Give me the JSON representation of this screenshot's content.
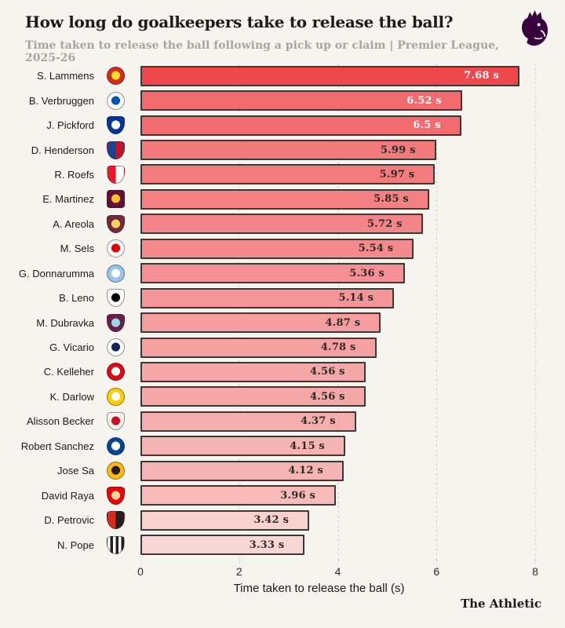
{
  "header": {
    "title": "How long do goalkeepers take to release the ball?",
    "subtitle": "Time taken to release the ball following a pick up or claim | Premier League, 2025-26",
    "logo_icon": "premier-league-lion-logo",
    "logo_color": "#38003c"
  },
  "chart_data": {
    "type": "bar",
    "orientation": "horizontal",
    "title": "How long do goalkeepers take to release the ball?",
    "xlabel": "Time taken to release the ball (s)",
    "ylabel": "",
    "xlim": [
      0,
      8
    ],
    "xticks": [
      0,
      2,
      4,
      6,
      8
    ],
    "grid": "vertical dotted gridlines at 2,4,6,8",
    "legend": "none",
    "value_suffix": " s",
    "bar_border_color": "#3f3734",
    "players": [
      {
        "name": "S. Lammens",
        "club": "Manchester United",
        "value": 7.68,
        "label": "7.68 s",
        "bar_color": "#ef474c",
        "label_color": "#ffffff",
        "crest": {
          "icon": "manchester-united-crest",
          "shape": "circle",
          "style": "ring",
          "colors": [
            "#da291c",
            "#fbe122"
          ]
        }
      },
      {
        "name": "B. Verbruggen",
        "club": "Brighton & Hove Albion",
        "value": 6.52,
        "label": "6.52 s",
        "bar_color": "#f16a6e",
        "label_color": "#ffffff",
        "crest": {
          "icon": "brighton-crest",
          "shape": "circle",
          "style": "ring",
          "colors": [
            "#ffffff",
            "#0057b8"
          ]
        }
      },
      {
        "name": "J. Pickford",
        "club": "Everton",
        "value": 6.5,
        "label": "6.5 s",
        "bar_color": "#f16b6f",
        "label_color": "#ffffff",
        "crest": {
          "icon": "everton-crest",
          "shape": "shield",
          "style": "ring",
          "colors": [
            "#00369c",
            "#ffffff"
          ]
        }
      },
      {
        "name": "D. Henderson",
        "club": "Crystal Palace",
        "value": 5.99,
        "label": "5.99 s",
        "bar_color": "#f27a7d",
        "label_color": "#2e2a28",
        "crest": {
          "icon": "crystal-palace-crest",
          "shape": "shield",
          "style": "split",
          "colors": [
            "#1b458f",
            "#c4122e"
          ]
        }
      },
      {
        "name": "R. Roefs",
        "club": "Sunderland",
        "value": 5.97,
        "label": "5.97 s",
        "bar_color": "#f27b7e",
        "label_color": "#2e2a28",
        "crest": {
          "icon": "sunderland-crest",
          "shape": "shield",
          "style": "split",
          "colors": [
            "#eb172b",
            "#ffffff"
          ]
        }
      },
      {
        "name": "E. Martinez",
        "club": "Aston Villa",
        "value": 5.85,
        "label": "5.85 s",
        "bar_color": "#f38083",
        "label_color": "#2e2a28",
        "crest": {
          "icon": "aston-villa-crest",
          "shape": "square",
          "style": "ring",
          "colors": [
            "#670e36",
            "#fdc52c"
          ]
        }
      },
      {
        "name": "A. Areola",
        "club": "West Ham United",
        "value": 5.72,
        "label": "5.72 s",
        "bar_color": "#f38487",
        "label_color": "#2e2a28",
        "crest": {
          "icon": "west-ham-crest",
          "shape": "shield",
          "style": "ring",
          "colors": [
            "#7a263a",
            "#f3d459"
          ]
        }
      },
      {
        "name": "M. Sels",
        "club": "Nottingham Forest",
        "value": 5.54,
        "label": "5.54 s",
        "bar_color": "#f38a8c",
        "label_color": "#2e2a28",
        "crest": {
          "icon": "nottingham-forest-crest",
          "shape": "circle",
          "style": "ring",
          "colors": [
            "#ffffff",
            "#dd0000"
          ]
        }
      },
      {
        "name": "G. Donnarumma",
        "club": "Manchester City",
        "value": 5.36,
        "label": "5.36 s",
        "bar_color": "#f49093",
        "label_color": "#2e2a28",
        "crest": {
          "icon": "manchester-city-crest",
          "shape": "circle",
          "style": "ring",
          "colors": [
            "#98c5e9",
            "#ffffff"
          ]
        }
      },
      {
        "name": "B. Leno",
        "club": "Fulham",
        "value": 5.14,
        "label": "5.14 s",
        "bar_color": "#f49697",
        "label_color": "#2e2a28",
        "crest": {
          "icon": "fulham-crest",
          "shape": "shield",
          "style": "ring",
          "colors": [
            "#ffffff",
            "#000000"
          ]
        }
      },
      {
        "name": "M. Dubravka",
        "club": "Burnley",
        "value": 4.87,
        "label": "4.87 s",
        "bar_color": "#f59d9e",
        "label_color": "#2e2a28",
        "crest": {
          "icon": "burnley-crest",
          "shape": "shield",
          "style": "ring",
          "colors": [
            "#6c1d45",
            "#99d6ea"
          ]
        }
      },
      {
        "name": "G. Vicario",
        "club": "Tottenham Hotspur",
        "value": 4.78,
        "label": "4.78 s",
        "bar_color": "#f5a1a2",
        "label_color": "#2e2a28",
        "crest": {
          "icon": "tottenham-crest",
          "shape": "circle",
          "style": "ring",
          "colors": [
            "#ffffff",
            "#132257"
          ]
        }
      },
      {
        "name": "C. Kelleher",
        "club": "Brentford",
        "value": 4.56,
        "label": "4.56 s",
        "bar_color": "#f5a7a7",
        "label_color": "#2e2a28",
        "crest": {
          "icon": "brentford-crest",
          "shape": "circle",
          "style": "ring",
          "colors": [
            "#e30613",
            "#ffffff"
          ]
        }
      },
      {
        "name": "K. Darlow",
        "club": "Leeds United",
        "value": 4.56,
        "label": "4.56 s",
        "bar_color": "#f5a7a7",
        "label_color": "#2e2a28",
        "crest": {
          "icon": "leeds-united-crest",
          "shape": "circle",
          "style": "ring",
          "colors": [
            "#ffcd00",
            "#ffffff"
          ]
        }
      },
      {
        "name": "Alisson Becker",
        "club": "Liverpool",
        "value": 4.37,
        "label": "4.37 s",
        "bar_color": "#f6adad",
        "label_color": "#2e2a28",
        "crest": {
          "icon": "liverpool-crest",
          "shape": "shield",
          "style": "ring",
          "colors": [
            "#f7f3ea",
            "#c8102e"
          ]
        }
      },
      {
        "name": "Robert Sanchez",
        "club": "Chelsea",
        "value": 4.15,
        "label": "4.15 s",
        "bar_color": "#f6b4b3",
        "label_color": "#2e2a28",
        "crest": {
          "icon": "chelsea-crest",
          "shape": "circle",
          "style": "ring",
          "colors": [
            "#034694",
            "#ffffff"
          ]
        }
      },
      {
        "name": "Jose Sa",
        "club": "Wolverhampton Wanderers",
        "value": 4.12,
        "label": "4.12 s",
        "bar_color": "#f6b5b4",
        "label_color": "#2e2a28",
        "crest": {
          "icon": "wolves-crest",
          "shape": "circle",
          "style": "ring",
          "colors": [
            "#fdb913",
            "#231f20"
          ]
        }
      },
      {
        "name": "David Raya",
        "club": "Arsenal",
        "value": 3.96,
        "label": "3.96 s",
        "bar_color": "#f7bbb9",
        "label_color": "#2e2a28",
        "crest": {
          "icon": "arsenal-crest",
          "shape": "shield",
          "style": "ring",
          "colors": [
            "#ef0107",
            "#fdd79a"
          ]
        }
      },
      {
        "name": "D. Petrovic",
        "club": "AFC Bournemouth",
        "value": 3.42,
        "label": "3.42 s",
        "bar_color": "#f8d2cf",
        "label_color": "#2e2a28",
        "crest": {
          "icon": "bournemouth-crest",
          "shape": "shield",
          "style": "split",
          "colors": [
            "#da291c",
            "#241f20"
          ]
        }
      },
      {
        "name": "N. Pope",
        "club": "Newcastle United",
        "value": 3.33,
        "label": "3.33 s",
        "bar_color": "#f8d6d3",
        "label_color": "#2e2a28",
        "crest": {
          "icon": "newcastle-crest",
          "shape": "shield",
          "style": "stripes",
          "colors": [
            "#ffffff",
            "#241f20"
          ]
        }
      }
    ]
  },
  "footer": {
    "credit": "The Athletic"
  }
}
